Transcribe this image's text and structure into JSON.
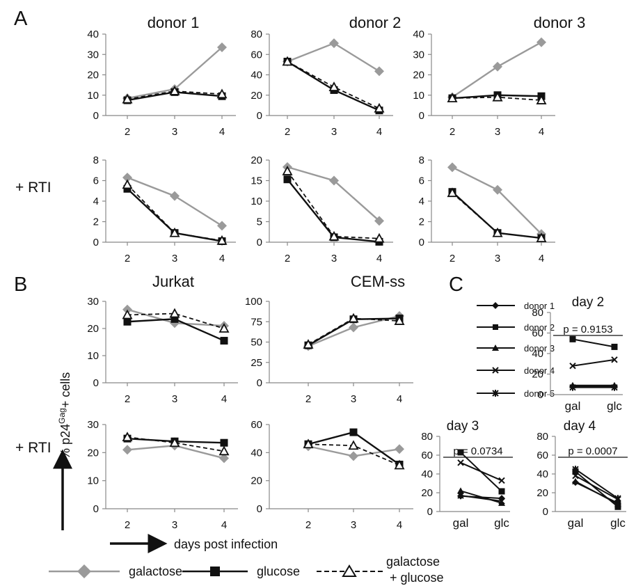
{
  "panel_letters": {
    "a": "A",
    "b": "B",
    "c": "C"
  },
  "row_labels": {
    "rti_top": "+ RTI",
    "rti_bottom": "+ RTI"
  },
  "y_axis_label": {
    "prefix": "% p24",
    "superscript": "Gag",
    "suffix": "+ cells"
  },
  "x_axis_label": "days post infection",
  "colors": {
    "galactose": "#9a9a9a",
    "glucose": "#111111",
    "gal_glc": "#111111",
    "axis": "#888888",
    "donors": "#111111"
  },
  "legend": {
    "galactose": "galactose",
    "glucose": "glucose",
    "gal_glc_line1": "galactose",
    "gal_glc_line2": "+ glucose"
  },
  "panel_c_legend": [
    "donor 1",
    "donor 2",
    "donor 3",
    "donor 4",
    "donor 5"
  ],
  "chart_data": [
    {
      "type": "line",
      "title": "donor 1",
      "x": [
        2,
        3,
        4
      ],
      "ylim": [
        0,
        40
      ],
      "yticks": [
        0,
        10,
        20,
        30,
        40
      ],
      "series": [
        {
          "name": "galactose",
          "values": [
            8.5,
            13,
            33.5
          ]
        },
        {
          "name": "glucose",
          "values": [
            7.5,
            11.5,
            9.5
          ]
        },
        {
          "name": "galactose + glucose",
          "values": [
            8,
            12,
            10.5
          ]
        }
      ]
    },
    {
      "type": "line",
      "title": "donor 2",
      "x": [
        2,
        3,
        4
      ],
      "ylim": [
        0,
        80
      ],
      "yticks": [
        0,
        20,
        40,
        60,
        80
      ],
      "series": [
        {
          "name": "galactose",
          "values": [
            53,
            71,
            43.5
          ]
        },
        {
          "name": "glucose",
          "values": [
            53,
            25,
            5
          ]
        },
        {
          "name": "galactose + glucose",
          "values": [
            53,
            28,
            7
          ]
        }
      ]
    },
    {
      "type": "line",
      "title": "donor 3",
      "x": [
        2,
        3,
        4
      ],
      "ylim": [
        0,
        40
      ],
      "yticks": [
        0,
        10,
        20,
        30,
        40
      ],
      "series": [
        {
          "name": "galactose",
          "values": [
            9,
            24,
            36
          ]
        },
        {
          "name": "glucose",
          "values": [
            8.5,
            10,
            9.5
          ]
        },
        {
          "name": "galactose + glucose",
          "values": [
            8.5,
            9,
            7.5
          ]
        }
      ]
    },
    {
      "type": "line",
      "title": "",
      "x": [
        2,
        3,
        4
      ],
      "ylim": [
        0,
        8
      ],
      "yticks": [
        0,
        2,
        4,
        6,
        8
      ],
      "series": [
        {
          "name": "galactose",
          "values": [
            6.3,
            4.5,
            1.6
          ]
        },
        {
          "name": "glucose",
          "values": [
            5.2,
            0.9,
            0.1
          ]
        },
        {
          "name": "galactose + glucose",
          "values": [
            5.6,
            0.9,
            0.15
          ]
        }
      ]
    },
    {
      "type": "line",
      "title": "",
      "x": [
        2,
        3,
        4
      ],
      "ylim": [
        0,
        20
      ],
      "yticks": [
        0,
        5,
        10,
        15,
        20
      ],
      "series": [
        {
          "name": "galactose",
          "values": [
            18.3,
            15,
            5.2
          ]
        },
        {
          "name": "glucose",
          "values": [
            15.3,
            1.2,
            0.1
          ]
        },
        {
          "name": "galactose + glucose",
          "values": [
            17.3,
            1.4,
            0.9
          ]
        }
      ]
    },
    {
      "type": "line",
      "title": "",
      "x": [
        2,
        3,
        4
      ],
      "ylim": [
        0,
        8
      ],
      "yticks": [
        0,
        2,
        4,
        6,
        8
      ],
      "series": [
        {
          "name": "galactose",
          "values": [
            7.3,
            5.1,
            0.8
          ]
        },
        {
          "name": "glucose",
          "values": [
            4.9,
            0.9,
            0.4
          ]
        },
        {
          "name": "galactose + glucose",
          "values": [
            4.8,
            0.9,
            0.4
          ]
        }
      ]
    },
    {
      "type": "line",
      "title": "Jurkat",
      "x": [
        2,
        3,
        4
      ],
      "ylim": [
        0,
        30
      ],
      "yticks": [
        0,
        10,
        20,
        30
      ],
      "series": [
        {
          "name": "galactose",
          "values": [
            27,
            22,
            21
          ]
        },
        {
          "name": "glucose",
          "values": [
            22.5,
            23.5,
            15.5
          ]
        },
        {
          "name": "galactose + glucose",
          "values": [
            25,
            25.5,
            20
          ]
        }
      ]
    },
    {
      "type": "line",
      "title": "CEM-ss",
      "x": [
        2,
        3,
        4
      ],
      "ylim": [
        0,
        100
      ],
      "yticks": [
        0,
        25,
        50,
        75,
        100
      ],
      "series": [
        {
          "name": "galactose",
          "values": [
            45,
            68,
            82
          ]
        },
        {
          "name": "glucose",
          "values": [
            46,
            78,
            79
          ]
        },
        {
          "name": "galactose + glucose",
          "values": [
            47,
            79,
            76
          ]
        }
      ]
    },
    {
      "type": "line",
      "title": "",
      "x": [
        2,
        3,
        4
      ],
      "ylim": [
        0,
        30
      ],
      "yticks": [
        0,
        10,
        20,
        30
      ],
      "series": [
        {
          "name": "galactose",
          "values": [
            21,
            22.5,
            18
          ]
        },
        {
          "name": "glucose",
          "values": [
            25,
            24,
            23.5
          ]
        },
        {
          "name": "galactose + glucose",
          "values": [
            25.5,
            23.5,
            20.5
          ]
        }
      ]
    },
    {
      "type": "line",
      "title": "",
      "x": [
        2,
        3,
        4
      ],
      "ylim": [
        0,
        60
      ],
      "yticks": [
        0,
        20,
        40,
        60
      ],
      "series": [
        {
          "name": "galactose",
          "values": [
            44.5,
            37.5,
            42.5
          ]
        },
        {
          "name": "glucose",
          "values": [
            46,
            54.5,
            31.5
          ]
        },
        {
          "name": "galactose + glucose",
          "values": [
            46,
            45,
            31
          ]
        }
      ]
    },
    {
      "type": "line",
      "title": "day 2",
      "categories": [
        "gal",
        "glc"
      ],
      "ylim": [
        0,
        80
      ],
      "yticks": [
        0,
        20,
        40,
        60,
        80
      ],
      "annotation": "p = 0.9153",
      "series": [
        {
          "name": "donor 1",
          "values": [
            8,
            8
          ]
        },
        {
          "name": "donor 2",
          "values": [
            54,
            46.5
          ]
        },
        {
          "name": "donor 3",
          "values": [
            9,
            9
          ]
        },
        {
          "name": "donor 4",
          "values": [
            28,
            34
          ]
        },
        {
          "name": "donor 5",
          "values": [
            7,
            7
          ]
        }
      ]
    },
    {
      "type": "line",
      "title": "day 3",
      "categories": [
        "gal",
        "glc"
      ],
      "ylim": [
        0,
        80
      ],
      "yticks": [
        0,
        20,
        40,
        60,
        80
      ],
      "annotation": "p = 0.0734",
      "series": [
        {
          "name": "donor 1",
          "values": [
            16.5,
            14
          ]
        },
        {
          "name": "donor 2",
          "values": [
            63,
            21.5
          ]
        },
        {
          "name": "donor 3",
          "values": [
            22,
            9
          ]
        },
        {
          "name": "donor 4",
          "values": [
            52,
            33
          ]
        },
        {
          "name": "donor 5",
          "values": [
            17,
            11
          ]
        }
      ]
    },
    {
      "type": "line",
      "title": "day 4",
      "categories": [
        "gal",
        "glc"
      ],
      "ylim": [
        0,
        80
      ],
      "yticks": [
        0,
        20,
        40,
        60,
        80
      ],
      "annotation": "p = 0.0007",
      "series": [
        {
          "name": "donor 1",
          "values": [
            31,
            9
          ]
        },
        {
          "name": "donor 2",
          "values": [
            42.5,
            5
          ]
        },
        {
          "name": "donor 3",
          "values": [
            32,
            8
          ]
        },
        {
          "name": "donor 4",
          "values": [
            38,
            13
          ]
        },
        {
          "name": "donor 5",
          "values": [
            45,
            14
          ]
        }
      ]
    }
  ]
}
